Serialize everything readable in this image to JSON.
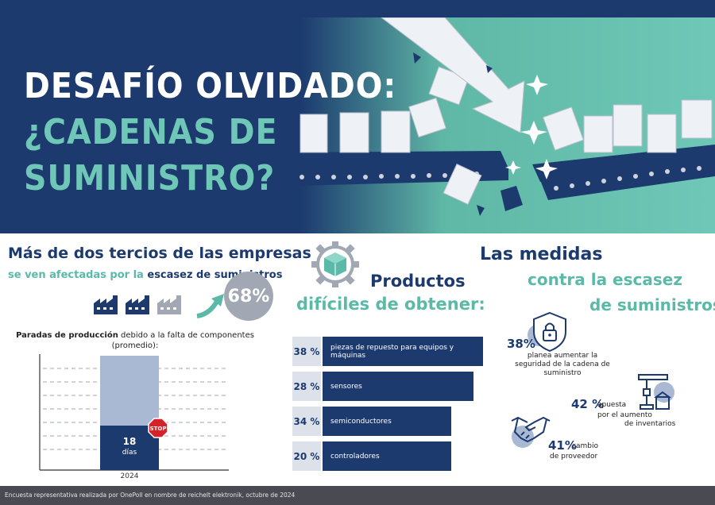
{
  "hero": {
    "title_line1": "DESAFÍO OLVIDADO:",
    "title_line2": "¿CADENAS DE",
    "title_line3": "SUMINISTRO?"
  },
  "left": {
    "headline1": "Más de dos tercios de las empresas",
    "headline2_prefix": "se ven afectadas por la ",
    "headline2_bold": "escasez de suministros",
    "percent": "68%",
    "factory_icons": [
      "factory-icon",
      "factory-icon",
      "factory-icon"
    ],
    "chart_title_bold": "Paradas de producción",
    "chart_title_rest": " debido a la falta de componentes",
    "chart_subtitle": "(promedio):",
    "bar_value": "18",
    "bar_unit": "días",
    "year": "2024",
    "stop_label": "STOP"
  },
  "middle": {
    "headline1": "Productos",
    "headline2": "difíciles de obtener:",
    "products": [
      {
        "percent": "38 %",
        "label": "piezas de repuesto para equipos y máquinas"
      },
      {
        "percent": "28 %",
        "label": "sensores"
      },
      {
        "percent": "34 %",
        "label": "semiconductores"
      },
      {
        "percent": "20 %",
        "label": "controladores"
      }
    ]
  },
  "right": {
    "headline1": "Las medidas",
    "headline2": "contra la escasez",
    "headline3": "de suministros:",
    "measures": [
      {
        "percent": "38%",
        "l1": "planea aumentar la",
        "l2": "seguridad de la cadena de",
        "l3": "suministro",
        "icon": "lock-icon"
      },
      {
        "percent": "42 %",
        "l1": "apuesta",
        "l2": "por el aumento",
        "l3": "de inventarios",
        "icon": "robot-arm-icon"
      },
      {
        "percent": "41%",
        "l1": "cambio",
        "l2": "de proveedor",
        "icon": "handshake-icon"
      }
    ]
  },
  "footer": {
    "note": "Encuesta representativa realizada por OnePoll en nombre de reichelt elektronik, octubre de 2024"
  },
  "colors": {
    "navy": "#1c3a6e",
    "teal": "#5bb9a8",
    "grey": "#a2a8b3"
  }
}
